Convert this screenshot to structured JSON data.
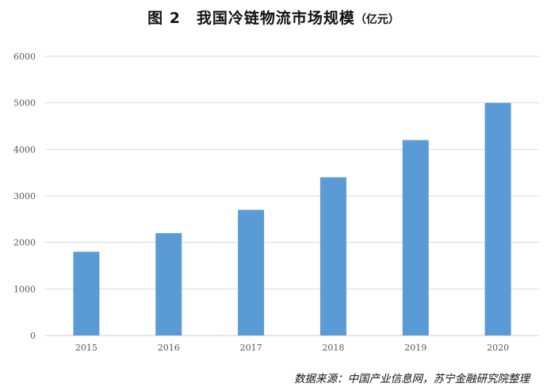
{
  "title": "图 2　我国冷链物流市场规模",
  "unit": "（亿元）",
  "source": "数据来源：中国产业信息网，苏宁金融研究院整理",
  "chart_data": {
    "type": "bar",
    "title": "图 2　我国冷链物流市场规模（亿元）",
    "xlabel": "",
    "ylabel": "",
    "categories": [
      "2015",
      "2016",
      "2017",
      "2018",
      "2019",
      "2020"
    ],
    "values": [
      1800,
      2200,
      2700,
      3400,
      4200,
      5000
    ],
    "ylim": [
      0,
      6000
    ],
    "yticks": [
      "0",
      "1000",
      "2000",
      "3000",
      "4000",
      "5000",
      "6000"
    ],
    "grid": true,
    "bar_color": "#5b9bd5",
    "grid_color": "#d9d9d9",
    "legend": "none"
  }
}
